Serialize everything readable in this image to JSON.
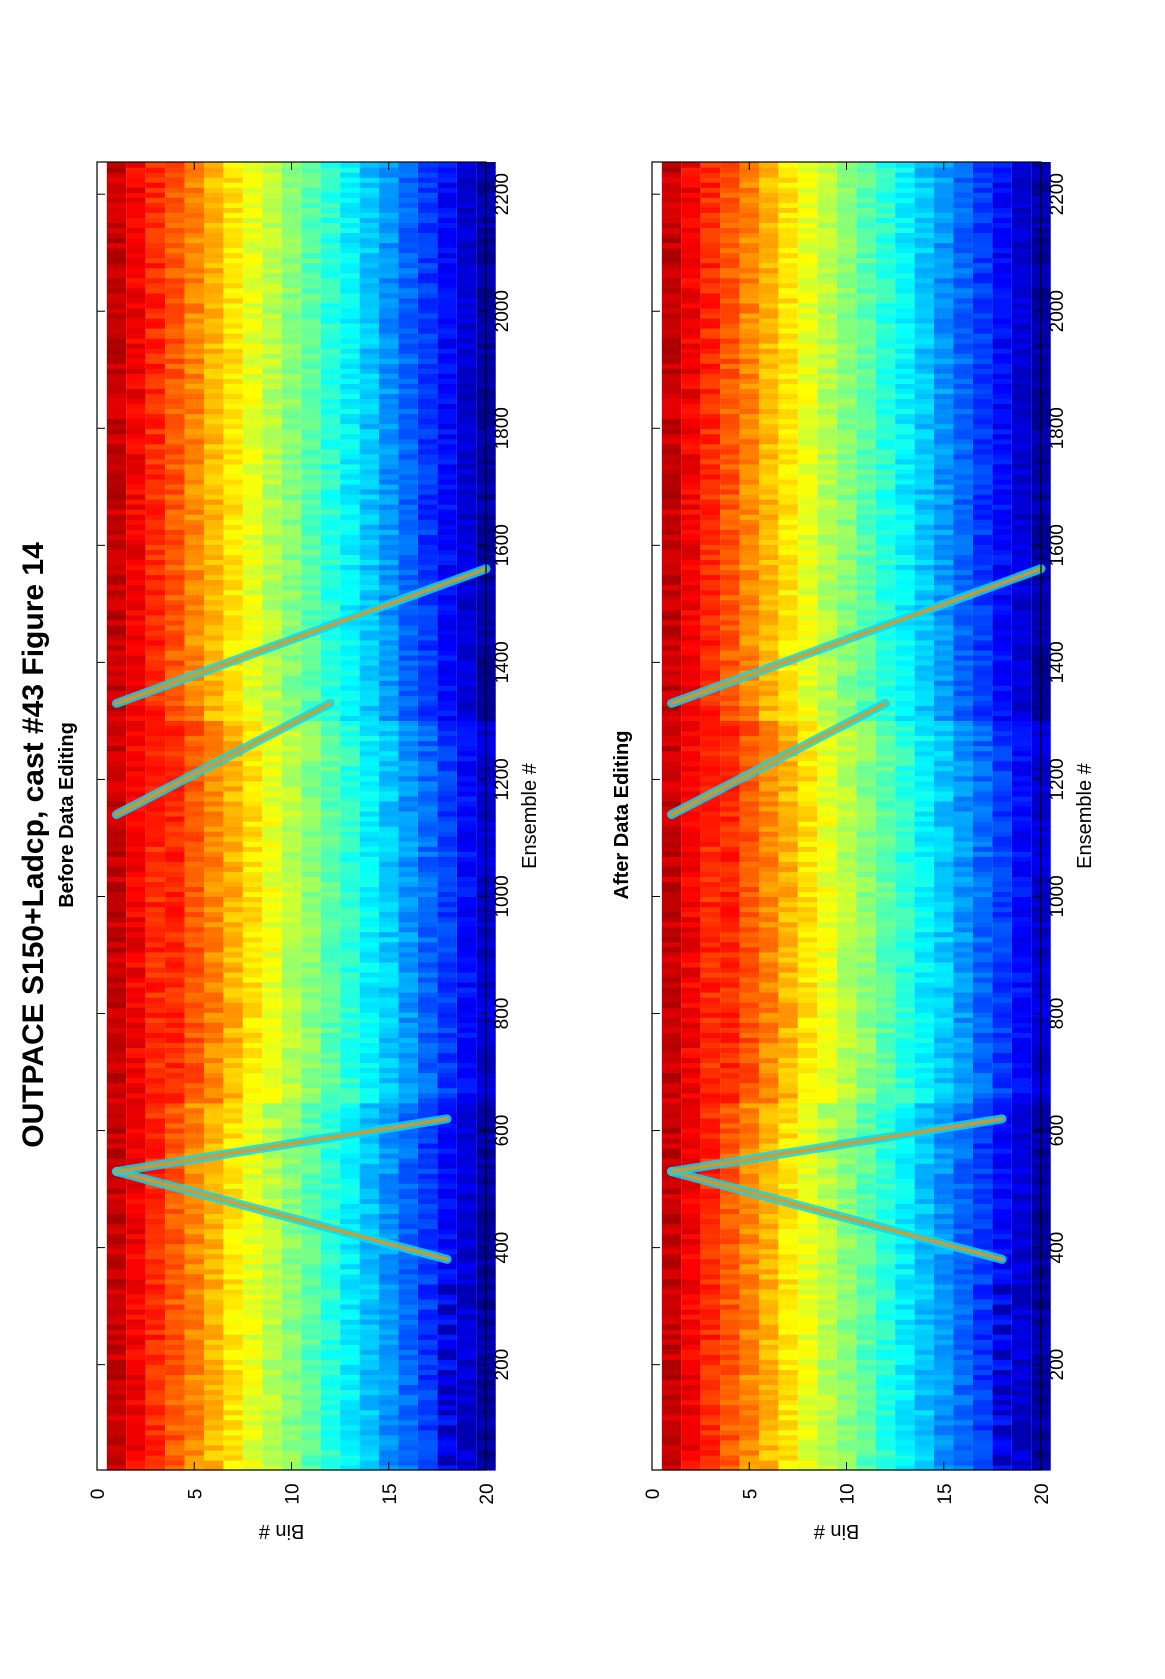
{
  "figure": {
    "title": "OUTPACE S150+Ladcp, cast #43  Figure 14"
  },
  "chart_data": [
    {
      "type": "heatmap",
      "subtitle": "Before Data Editing",
      "xlabel": "Ensemble #",
      "ylabel": "Bin #",
      "xlim": [
        20,
        2255
      ],
      "ylim": [
        0,
        20
      ],
      "y_reversed": true,
      "x_ticks": [
        200,
        400,
        600,
        800,
        1000,
        1200,
        1400,
        1600,
        1800,
        2000,
        2200
      ],
      "y_ticks": [
        0,
        5,
        10,
        15,
        20
      ],
      "colormap": "jet",
      "grid": false,
      "bins": [
        1,
        20
      ],
      "surface_features": [
        {
          "name": "seafloor-echo-1",
          "ensemble_range": [
            380,
            530
          ],
          "bin_range": [
            18,
            1
          ]
        },
        {
          "name": "seafloor-echo-2",
          "ensemble_range": [
            530,
            620
          ],
          "bin_range": [
            1,
            18
          ]
        },
        {
          "name": "seafloor-echo-3",
          "ensemble_range": [
            1140,
            1330
          ],
          "bin_range": [
            1,
            12
          ]
        },
        {
          "name": "seafloor-echo-4",
          "ensemble_range": [
            1330,
            1560
          ],
          "bin_range": [
            1,
            20
          ]
        }
      ]
    },
    {
      "type": "heatmap",
      "subtitle": "After Data Editing",
      "xlabel": "Ensemble #",
      "ylabel": "Bin #",
      "xlim": [
        20,
        2255
      ],
      "ylim": [
        0,
        20
      ],
      "y_reversed": true,
      "x_ticks": [
        200,
        400,
        600,
        800,
        1000,
        1200,
        1400,
        1600,
        1800,
        2000,
        2200
      ],
      "y_ticks": [
        0,
        5,
        10,
        15,
        20
      ],
      "colormap": "jet",
      "grid": false,
      "bins": [
        1,
        20
      ],
      "surface_features": [
        {
          "name": "seafloor-echo-1",
          "ensemble_range": [
            380,
            530
          ],
          "bin_range": [
            18,
            1
          ]
        },
        {
          "name": "seafloor-echo-2",
          "ensemble_range": [
            530,
            620
          ],
          "bin_range": [
            1,
            18
          ]
        },
        {
          "name": "seafloor-echo-3",
          "ensemble_range": [
            1140,
            1330
          ],
          "bin_range": [
            1,
            12
          ]
        },
        {
          "name": "seafloor-echo-4",
          "ensemble_range": [
            1330,
            1560
          ],
          "bin_range": [
            1,
            20
          ]
        }
      ]
    }
  ]
}
